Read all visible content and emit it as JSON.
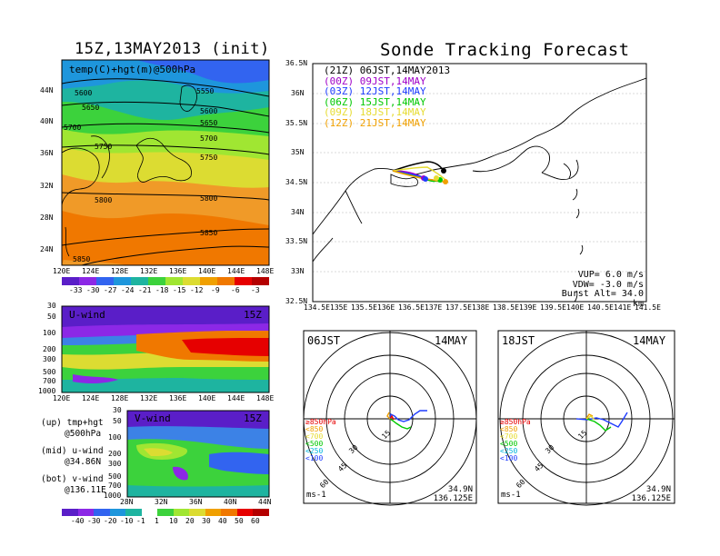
{
  "left_title": "15Z,13MAY2013 (init)",
  "right_title": "Sonde Tracking Forecast",
  "map500": {
    "label": "temp(C)+hgt(m)@500hPa",
    "lat_ticks": [
      "44N",
      "40N",
      "36N",
      "32N",
      "28N",
      "24N"
    ],
    "lon_ticks": [
      "120E",
      "124E",
      "128E",
      "132E",
      "136E",
      "140E",
      "144E",
      "148E"
    ],
    "contour_labels": [
      "5550",
      "5600",
      "5600",
      "5650",
      "5650",
      "5700",
      "5700",
      "5750",
      "5750",
      "5800",
      "5800",
      "5850",
      "5850"
    ],
    "colorbar": [
      "-33",
      "-30",
      "-27",
      "-24",
      "-21",
      "-18",
      "-15",
      "-12",
      "-9",
      "-6",
      "-3"
    ]
  },
  "uwind": {
    "label": "U-wind",
    "time": "15Z",
    "p_ticks": [
      "30",
      "50",
      "100",
      "200",
      "300",
      "500",
      "700",
      "1000"
    ],
    "lon_ticks": [
      "120E",
      "124E",
      "128E",
      "132E",
      "136E",
      "140E",
      "144E",
      "148E"
    ]
  },
  "vwind": {
    "label": "V-wind",
    "time": "15Z",
    "p_ticks": [
      "30",
      "50",
      "100",
      "200",
      "300",
      "500",
      "700",
      "1000"
    ],
    "lat_ticks": [
      "28N",
      "32N",
      "36N",
      "40N",
      "44N"
    ],
    "colorbar": [
      "-40",
      "-30",
      "-20",
      "-10",
      "-1",
      "1",
      "10",
      "20",
      "30",
      "40",
      "50",
      "60"
    ]
  },
  "notes": [
    {
      "a": "(up) tmp+hgt",
      "b": "@500hPa"
    },
    {
      "a": "(mid) u-wind",
      "b": "@34.86N"
    },
    {
      "a": "(bot) v-wind",
      "b": "@136.11E"
    }
  ],
  "track": {
    "lat_ticks": [
      "36.5N",
      "36N",
      "35.5N",
      "35N",
      "34.5N",
      "34N",
      "33.5N",
      "33N",
      "32.5N"
    ],
    "lon_ticks": [
      "134.5E",
      "135E",
      "135.5E",
      "136E",
      "136.5E",
      "137E",
      "137.5E",
      "138E",
      "138.5E",
      "139E",
      "139.5E",
      "140E",
      "140.5E",
      "141E",
      "141.5E"
    ],
    "legend": [
      {
        "text": "(21Z) 06JST,14MAY2013",
        "color": "#000000"
      },
      {
        "text": "(00Z) 09JST,14MAY",
        "color": "#a000c8"
      },
      {
        "text": "(03Z) 12JST,14MAY",
        "color": "#1e3cff"
      },
      {
        "text": "(06Z) 15JST,14MAY",
        "color": "#00c800"
      },
      {
        "text": "(09Z) 18JST,14MAY",
        "color": "#e6dc32"
      },
      {
        "text": "(12Z) 21JST,14MAY",
        "color": "#f0a000"
      }
    ],
    "vup": "VUP= 6.0 m/s",
    "vdw": "VDW= -3.0 m/s",
    "burst": "Burst Alt= 34.0 km"
  },
  "hodo_left": {
    "time": "06JST",
    "date": "14MAY",
    "lat": "34.9N",
    "lon": "136.125E",
    "unit": "ms-1",
    "rings": [
      "15",
      "30",
      "45",
      "60"
    ]
  },
  "hodo_right": {
    "time": "18JST",
    "date": "14MAY",
    "lat": "34.9N",
    "lon": "136.125E",
    "unit": "ms-1",
    "rings": [
      "15",
      "30",
      "45",
      "60"
    ]
  },
  "hodo_levels": [
    {
      "text": "≥850hPa",
      "color": "#e60000"
    },
    {
      "text": "<850",
      "color": "#f0a000"
    },
    {
      "text": "<700",
      "color": "#e6dc32"
    },
    {
      "text": "<500",
      "color": "#00c800"
    },
    {
      "text": "<250",
      "color": "#00b4dc"
    },
    {
      "text": "<100",
      "color": "#1e3cff"
    }
  ]
}
